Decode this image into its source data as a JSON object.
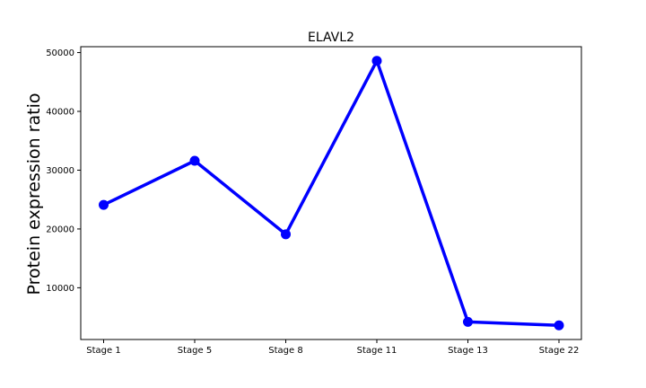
{
  "chart_data": {
    "type": "line",
    "title": "ELAVL2",
    "xlabel": "",
    "ylabel": "Protein expression ratio",
    "categories": [
      "Stage 1",
      "Stage 5",
      "Stage 8",
      "Stage 11",
      "Stage 13",
      "Stage 22"
    ],
    "series": [
      {
        "values": [
          24100,
          31600,
          19100,
          48600,
          4200,
          3600
        ]
      }
    ],
    "ylim": [
      1200,
      51000
    ],
    "yticks": [
      10000,
      20000,
      30000,
      40000,
      50000
    ],
    "ytick_labels": [
      "10000",
      "20000",
      "30000",
      "40000",
      "50000"
    ],
    "grid": false,
    "line_color": "#0000ff",
    "marker": "circle"
  }
}
